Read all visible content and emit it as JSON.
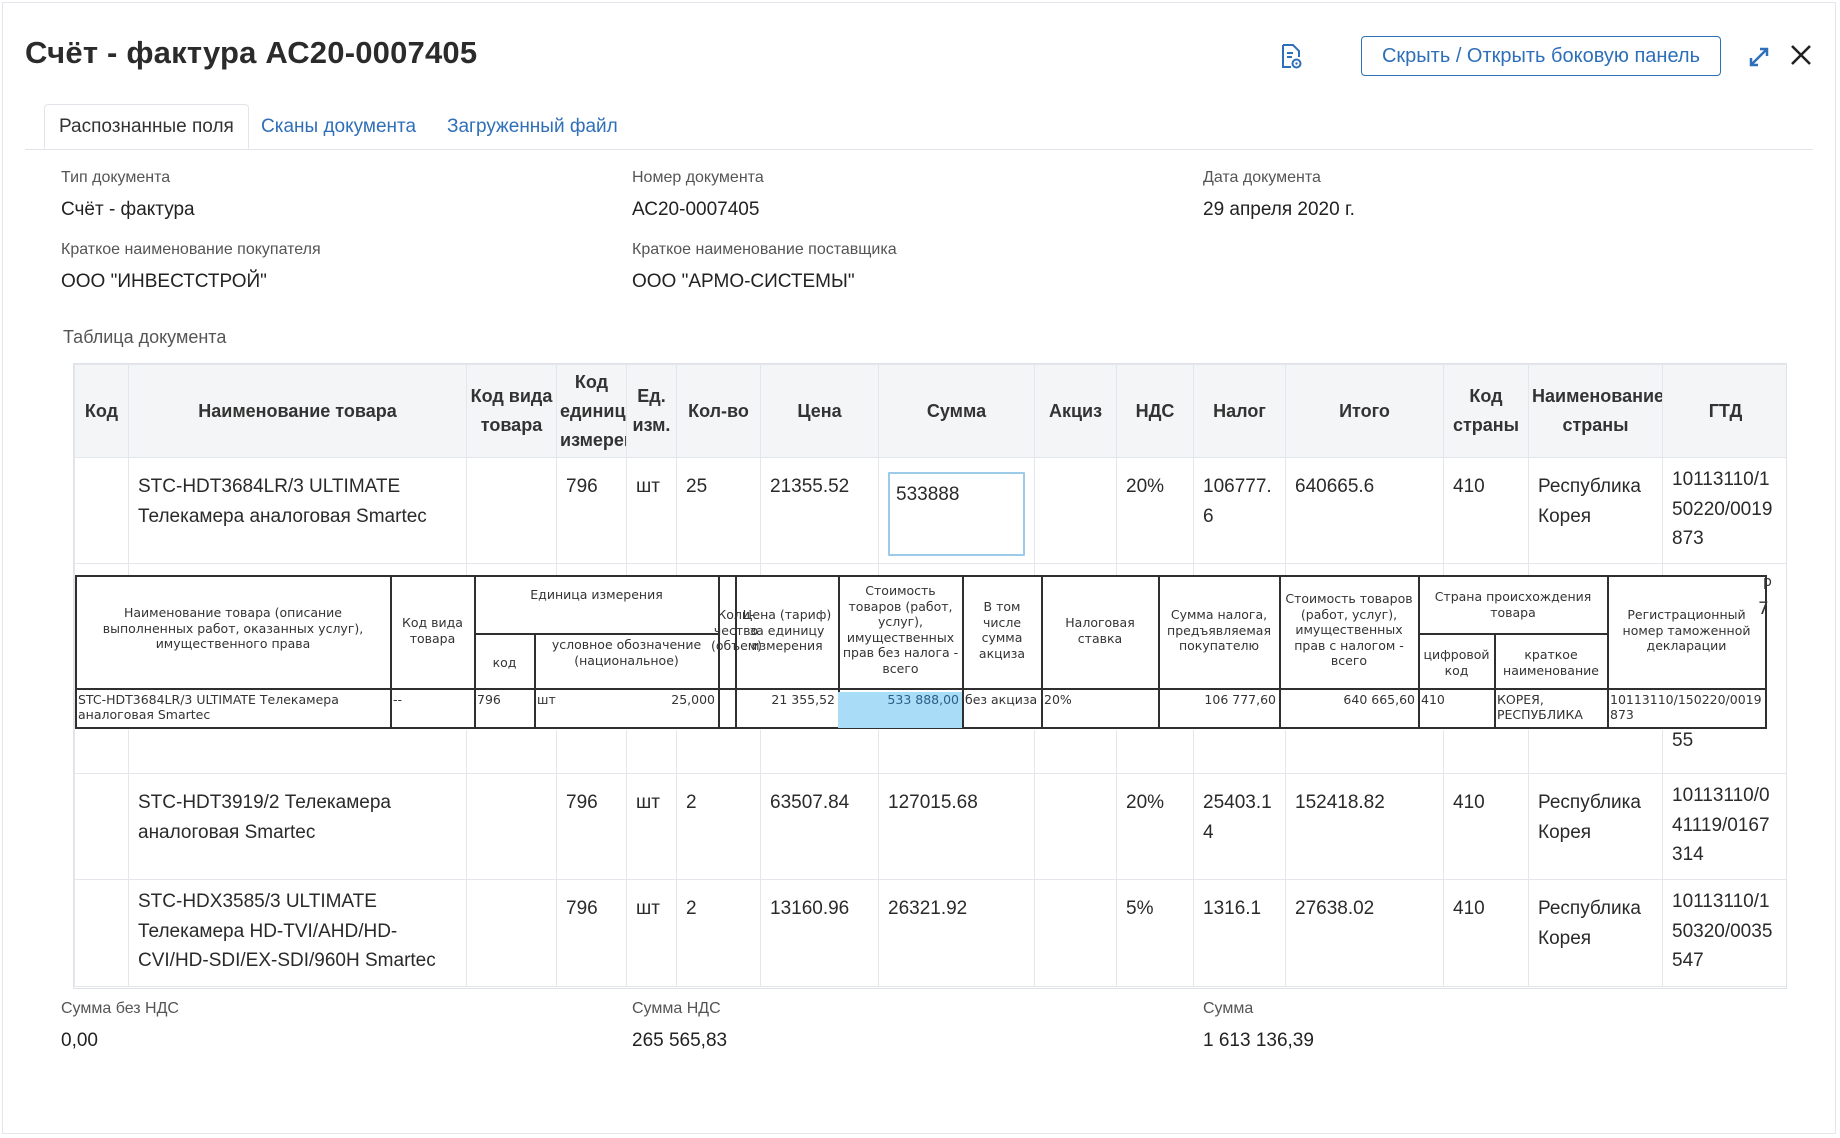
{
  "title": "Счёт - фактура АС20-0007405",
  "header": {
    "doc_icon": "document-settings-icon",
    "toggle_panel_label": "Скрыть / Открыть боковую панель",
    "expand_icon": "expand-icon",
    "close_icon": "close-icon"
  },
  "tabs": [
    {
      "label": "Распознанные поля",
      "active": true
    },
    {
      "label": "Сканы документа",
      "active": false
    },
    {
      "label": "Загруженный файл",
      "active": false
    }
  ],
  "fields": {
    "doc_type": {
      "label": "Тип документа",
      "value": "Счёт - фактура"
    },
    "doc_number": {
      "label": "Номер документа",
      "value": "АС20-0007405"
    },
    "doc_date": {
      "label": "Дата документа",
      "value": "29 апреля 2020 г."
    },
    "buyer": {
      "label": "Краткое наименование покупателя",
      "value": "ООО \"ИНВЕСТСТРОЙ\""
    },
    "supplier": {
      "label": "Краткое наименование поставщика",
      "value": "ООО \"АРМО-СИСТЕМЫ\""
    }
  },
  "table_label": "Таблица документа",
  "table": {
    "columns": [
      "Код",
      "Наименование товара",
      "Код вида товара",
      "Код единиц измерения",
      "Ед. изм.",
      "Кол-во",
      "Цена",
      "Сумма",
      "Акциз",
      "НДС",
      "Налог",
      "Итого",
      "Код страны",
      "Наименование страны",
      "ГТД"
    ],
    "header_display": {
      "unit_code": "Код единиц измерен",
      "unit": "Ед. изм."
    },
    "rows": [
      {
        "code": "",
        "name": "STC-HDT3684LR/3 ULTIMATE Телекамера аналоговая Smartec",
        "type_code": "",
        "unit_code": "796",
        "unit": "шт",
        "qty": "25",
        "price": "21355.52",
        "sum": "533888",
        "excise": "",
        "vat": "20%",
        "tax": "106777.6",
        "total": "640665.6",
        "country_code": "410",
        "country": "Республика Корея",
        "gtd": "10113110/150220/0019873"
      },
      {
        "code": "",
        "name": "",
        "type_code": "",
        "unit_code": "",
        "unit": "",
        "qty": "",
        "price": "",
        "sum": "",
        "excise": "",
        "vat": "",
        "tax": "",
        "total": "",
        "country_code": "",
        "country": "",
        "gtd": "55"
      },
      {
        "code": "",
        "name": "STC-HDT3919/2 Телекамера аналоговая Smartec",
        "type_code": "",
        "unit_code": "796",
        "unit": "шт",
        "qty": "2",
        "price": "63507.84",
        "sum": "127015.68",
        "excise": "",
        "vat": "20%",
        "tax": "25403.14",
        "total": "152418.82",
        "country_code": "410",
        "country": "Республика Корея",
        "gtd": "10113110/041119/0167314"
      },
      {
        "code": "",
        "name": "STC-HDX3585/3 ULTIMATE Телекамера HD-TVI/AHD/HD-CVI/HD-SDI/EX-SDI/960H Smartec",
        "type_code": "",
        "unit_code": "796",
        "unit": "шт",
        "qty": "2",
        "price": "13160.96",
        "sum": "26321.92",
        "excise": "",
        "vat": "5%",
        "tax": "1316.1",
        "total": "27638.02",
        "country_code": "410",
        "country": "Республика Корея",
        "gtd": "10113110/150320/0035547"
      }
    ]
  },
  "scan": {
    "headers": {
      "name": "Наименование товара (описание выполненных работ, оказанных услуг), имущественного права",
      "type_code": "Код вида товара",
      "unit": "Единица измерения",
      "unit_code": "код",
      "unit_symbol": "условное обозначение (национальное)",
      "qty": "Коли- чество (объем)",
      "price": "Цена (тариф) за единицу измерения",
      "cost": "Стоимость товаров (работ, услуг), имущественных прав без налога - всего",
      "excise": "В том числе сумма акциза",
      "rate": "Налоговая ставка",
      "tax": "Сумма налога, предъявляемая покупателю",
      "total": "Стоимость товаров (работ, услуг), имущественных прав с налогом - всего",
      "country": "Страна происхождения товара",
      "country_code": "цифровой код",
      "country_name": "краткое наименование",
      "reg": "Регистрационный номер таможенной декларации"
    },
    "row": {
      "name": "STC-HDT3684LR/3 ULTIMATE Телекамера аналоговая Smartec",
      "type_code": "--",
      "unit_code": "796",
      "unit_symbol": "шт",
      "qty": "25,000",
      "price": "21 355,52",
      "cost": "533 888,00",
      "excise": "без акциза",
      "rate": "20%",
      "tax": "106 777,60",
      "total": "640 665,60",
      "country_code": "410",
      "country_name": "КОРЕЯ, РЕСПУБЛИКА",
      "reg": "10113110/150220/0019873"
    },
    "edge_glyphs": [
      "7",
      "р"
    ],
    "under_text": "аналоговая Smartec",
    "under_country": "Корея"
  },
  "totals": {
    "net": {
      "label": "Сумма без НДС",
      "value": "0,00"
    },
    "vat": {
      "label": "Сумма НДС",
      "value": "265 565,83"
    },
    "sum": {
      "label": "Сумма",
      "value": "1 613 136,39"
    }
  },
  "colors": {
    "accent": "#2f6fb8",
    "highlight": "#a9dcf7",
    "edit_border": "#9ccbea"
  }
}
